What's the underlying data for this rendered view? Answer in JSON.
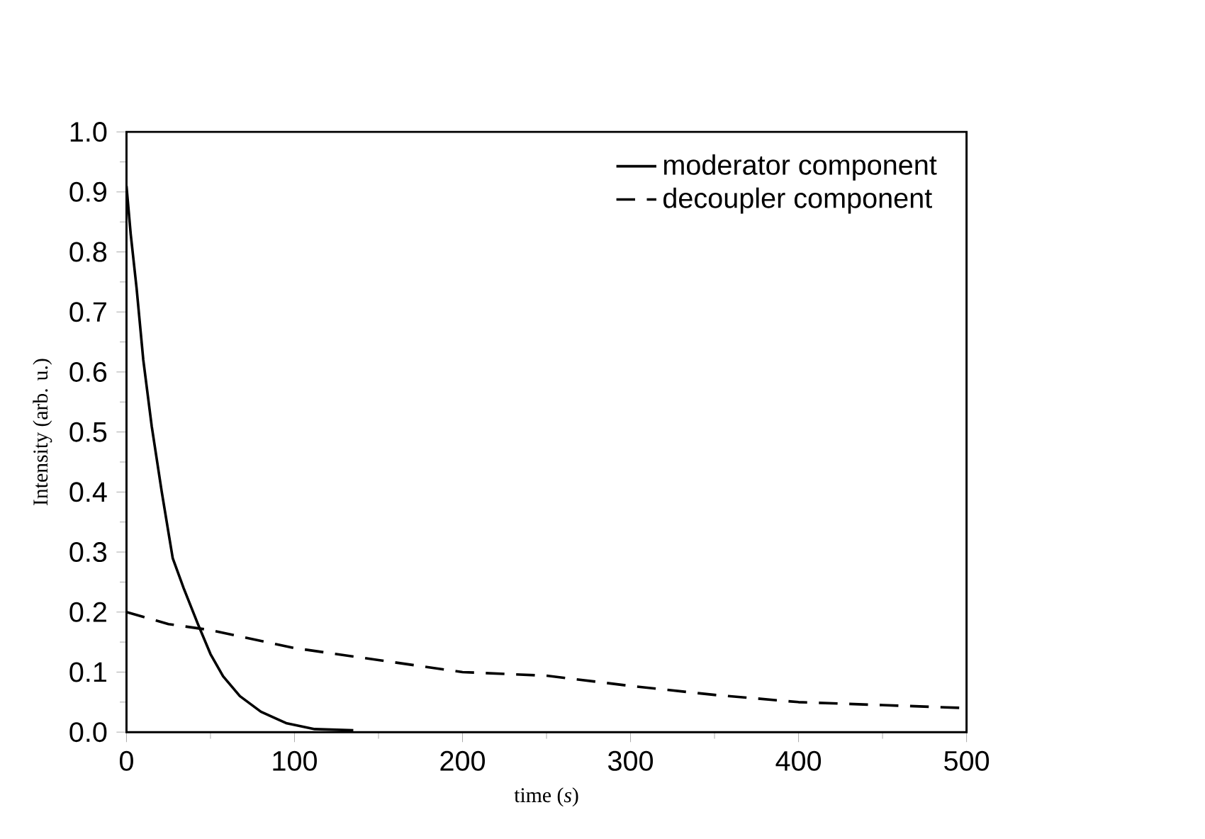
{
  "chart_data": {
    "type": "line",
    "xlabel": "time (*s*)",
    "ylabel": "Intensity (arb. u.)",
    "xlim": [
      0,
      500
    ],
    "ylim": [
      0,
      1.0
    ],
    "xticks": [
      0,
      100,
      200,
      300,
      400,
      500
    ],
    "yticks": [
      {
        "value": 0,
        "label": "0.0"
      },
      0.1,
      0.2,
      0.3,
      0.4,
      0.5,
      0.6,
      0.7,
      0.8,
      0.9,
      {
        "value": 1,
        "label": "1.0"
      }
    ],
    "legend": "top right",
    "series": [
      {
        "name": "moderator component",
        "color": "#000000",
        "line_style": "solid",
        "x": [
          0,
          2.5,
          6,
          10,
          15,
          21,
          27.5,
          34,
          42.5,
          50,
          57.5,
          67.5,
          80,
          95,
          112,
          135
        ],
        "values": [
          0.91,
          0.83,
          0.74,
          0.62,
          0.51,
          0.4,
          0.29,
          0.24,
          0.18,
          0.13,
          0.093,
          0.06,
          0.034,
          0.015,
          0.005,
          0.003
        ]
      },
      {
        "name": "decoupler component",
        "color": "#000000",
        "line_style": "dashed",
        "x": [
          0,
          25,
          50,
          100,
          150,
          200,
          250,
          300,
          350,
          400,
          450,
          500
        ],
        "values": [
          0.2,
          0.18,
          0.17,
          0.14,
          0.12,
          0.1,
          0.094,
          0.077,
          0.062,
          0.05,
          0.045,
          0.04
        ]
      }
    ]
  }
}
